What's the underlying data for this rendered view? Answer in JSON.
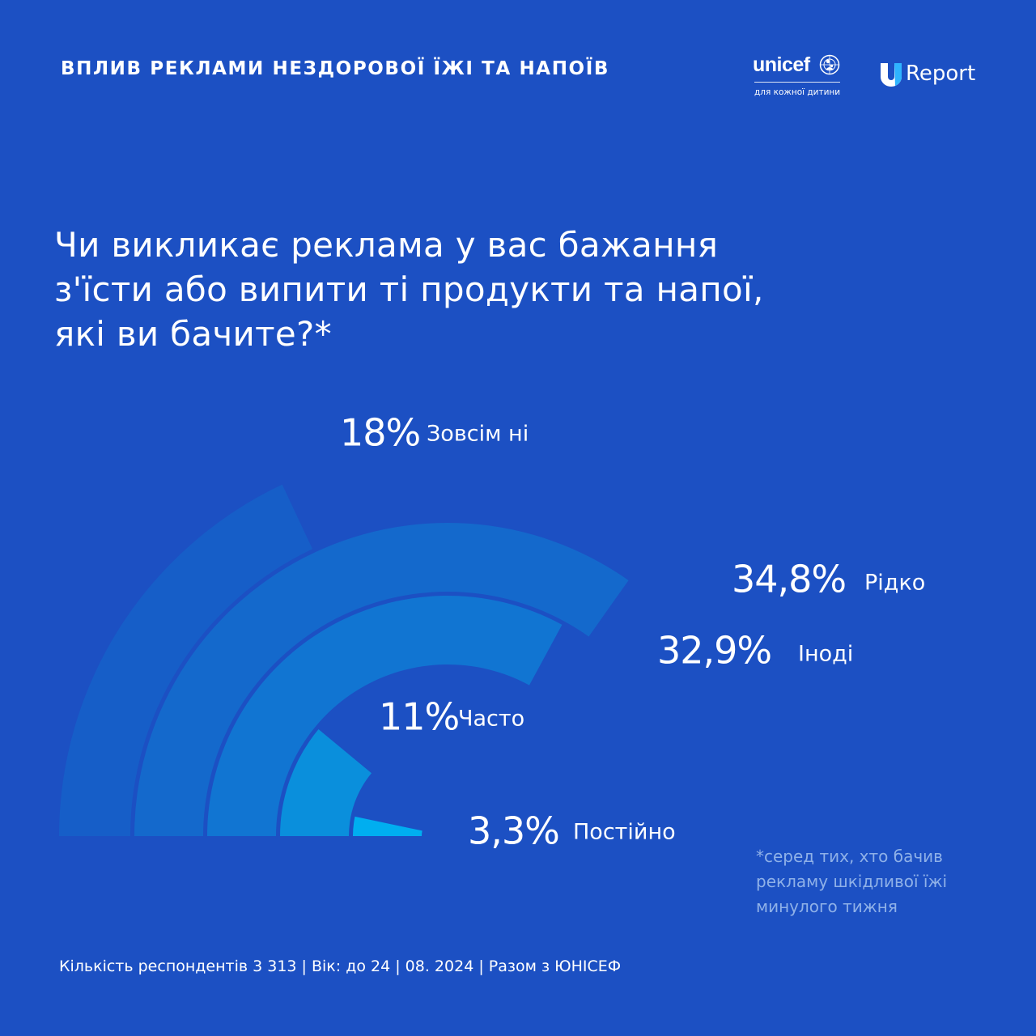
{
  "header": {
    "title": "ВПЛИВ РЕКЛАМИ НЕЗДОРОВОЇ ЇЖІ ТА НАПОЇВ",
    "unicef_wordmark": "unicef",
    "unicef_tagline": "для кожної дитини",
    "ureport_wordmark": "Report"
  },
  "question": {
    "lines": [
      "Чи викликає реклама у вас бажання",
      "з'їсти або випити ті продукти та напої,",
      "які ви бачите?*"
    ]
  },
  "chart_data": {
    "type": "pie",
    "title": "Чи викликає реклама у вас бажання з'їсти або випити ті продукти та напої, які ви бачите?*",
    "unit": "%",
    "max": 100,
    "series": [
      {
        "category": "Зовсім ні",
        "value": 18,
        "label": "18%",
        "color": "#165ec8"
      },
      {
        "category": "Рідко",
        "value": 34.8,
        "label": "34,8%",
        "color": "#1469cc"
      },
      {
        "category": "Іноді",
        "value": 32.9,
        "label": "32,9%",
        "color": "#1175d2"
      },
      {
        "category": "Часто",
        "value": 11,
        "label": "11%",
        "color": "#0a8fdc"
      },
      {
        "category": "Постійно",
        "value": 3.3,
        "label": "3,3%",
        "color": "#00aef0"
      }
    ]
  },
  "note": {
    "lines": [
      "*серед тих, хто бачив",
      "рекламу шкідливої їжі",
      "минулого тижня"
    ]
  },
  "footer": {
    "text": "Кількість респондентів 3 313 | Вік: до 24 | 08. 2024 | Разом з ЮНІСЕФ"
  }
}
